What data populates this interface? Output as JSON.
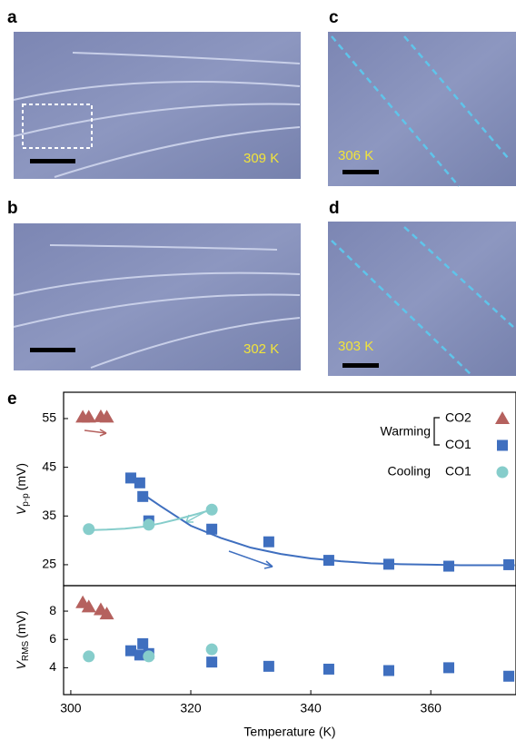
{
  "panels": [
    {
      "letter": "a",
      "temperature": "309 K"
    },
    {
      "letter": "b",
      "temperature": "302 K"
    },
    {
      "letter": "c",
      "temperature": "306 K"
    },
    {
      "letter": "d",
      "temperature": "303 K"
    }
  ],
  "chart_data": [
    {
      "type": "scatter",
      "panel": "e",
      "ylabel": {
        "symbol": "V",
        "subscript": "p-p",
        "unit": "(mV)"
      },
      "legend_groups": [
        "Warming",
        "Cooling"
      ],
      "xlim": [
        298.8,
        374.2
      ],
      "ylim": [
        20.7,
        60.4
      ],
      "yticks": [
        25,
        35,
        45,
        55
      ],
      "series": [
        {
          "name": "CO2",
          "marker": "triangle",
          "color": "#b5615e",
          "x": [
            302,
            303,
            305,
            306
          ],
          "values": [
            55.3,
            55.3,
            55.4,
            55.3
          ]
        },
        {
          "name": "CO1",
          "marker": "square",
          "color": "#3f6fbf",
          "x": [
            310,
            311.5,
            312,
            313,
            323.5,
            333,
            343,
            353,
            363,
            373
          ],
          "values": [
            42.8,
            41.8,
            39,
            34,
            32.3,
            29.7,
            25.9,
            25.1,
            24.7,
            25
          ]
        },
        {
          "name": "CO1",
          "marker": "circle",
          "color": "#86cdcb",
          "x": [
            303,
            313,
            323.5
          ],
          "values": [
            32.3,
            33.2,
            36.3
          ]
        },
        {
          "type": "line",
          "color": "#3f6fbf",
          "x": [
            312,
            315,
            320,
            325,
            330,
            335,
            340,
            345,
            350,
            355,
            360,
            365,
            370,
            374
          ],
          "values": [
            39.5,
            37,
            33,
            30.5,
            28.5,
            27.2,
            26.3,
            25.7,
            25.3,
            25.1,
            25,
            24.9,
            24.9,
            24.9
          ]
        },
        {
          "type": "line",
          "color": "#86cdcb",
          "x": [
            303,
            306,
            309,
            312,
            315,
            318,
            321,
            323.5
          ],
          "values": [
            32.1,
            32.2,
            32.4,
            32.8,
            33.5,
            34.4,
            35.4,
            36.3
          ]
        }
      ]
    },
    {
      "type": "scatter",
      "ylabel": {
        "symbol": "V",
        "subscript": "RMS",
        "unit": "(mV)"
      },
      "xlabel": "Temperature (K)",
      "xlim": [
        298.8,
        374.2
      ],
      "xticks": [
        300,
        320,
        340,
        360
      ],
      "ylim": [
        2.1,
        9.8
      ],
      "yticks": [
        4,
        6,
        8
      ],
      "series": [
        {
          "marker": "triangle",
          "color": "#b5615e",
          "x": [
            302,
            303,
            305,
            306
          ],
          "values": [
            8.6,
            8.3,
            8.1,
            7.8
          ]
        },
        {
          "marker": "square",
          "color": "#3f6fbf",
          "x": [
            310,
            311.5,
            312,
            313,
            323.5,
            333,
            343,
            353,
            363,
            373
          ],
          "values": [
            5.2,
            4.9,
            5.7,
            5.0,
            4.4,
            4.1,
            3.9,
            3.8,
            4.0,
            3.4
          ]
        },
        {
          "marker": "circle",
          "color": "#86cdcb",
          "x": [
            303,
            313,
            323.5
          ],
          "values": [
            4.8,
            4.8,
            5.3
          ]
        }
      ]
    }
  ]
}
